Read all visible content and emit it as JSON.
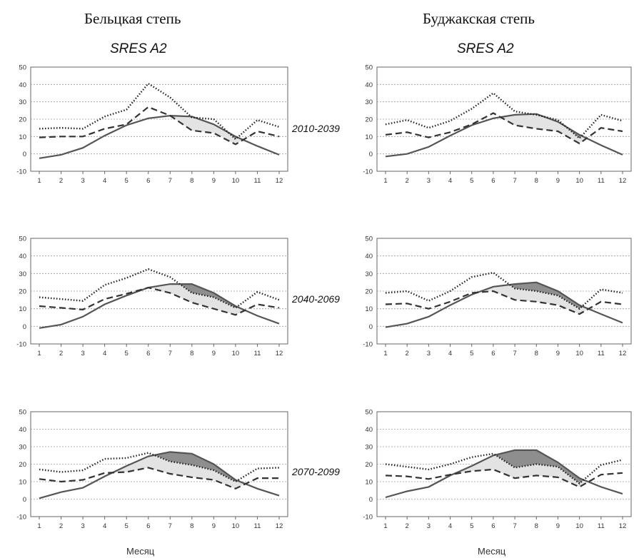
{
  "columns": [
    {
      "title": "Бельцкая степь",
      "scenario": "SRES A2"
    },
    {
      "title": "Буджакская степь",
      "scenario": "SRES A2"
    }
  ],
  "periods": [
    "2010-2039",
    "2040-2069",
    "2070-2099"
  ],
  "xlabel": "Месяц",
  "colors": {
    "solid": "#555555",
    "dashed": "#333333",
    "dotted": "#222222",
    "fill_light": "#e3e3e3",
    "fill_dark": "#8e8e8e",
    "grid": "#9a9a9a"
  },
  "chart_data": [
    {
      "type": "line",
      "column": 0,
      "period": "2010-2039",
      "x": [
        1,
        2,
        3,
        4,
        5,
        6,
        7,
        8,
        9,
        10,
        11,
        12
      ],
      "ylim": [
        -10,
        50
      ],
      "yticks": [
        -10,
        0,
        10,
        20,
        30,
        40,
        50
      ],
      "series": [
        {
          "style": "solid",
          "values": [
            -2.5,
            -0.5,
            3.5,
            10.5,
            16.5,
            20.5,
            22,
            21.5,
            17,
            10,
            4.5,
            -0.5
          ]
        },
        {
          "style": "dashed",
          "values": [
            9.5,
            10,
            10,
            14.5,
            17,
            27,
            22,
            13.5,
            12,
            5.5,
            13,
            10
          ]
        },
        {
          "style": "dotted",
          "values": [
            14.5,
            15,
            14.5,
            21.5,
            25.5,
            40.5,
            32.5,
            21,
            20,
            8.5,
            19.5,
            15.5
          ]
        }
      ]
    },
    {
      "type": "line",
      "column": 0,
      "period": "2040-2069",
      "x": [
        1,
        2,
        3,
        4,
        5,
        6,
        7,
        8,
        9,
        10,
        11,
        12
      ],
      "ylim": [
        -10,
        50
      ],
      "yticks": [
        -10,
        0,
        10,
        20,
        30,
        40,
        50
      ],
      "series": [
        {
          "style": "solid",
          "values": [
            -1,
            1,
            5.5,
            12.5,
            17.5,
            22,
            24,
            24,
            19,
            11.5,
            6,
            1.5
          ]
        },
        {
          "style": "dashed",
          "values": [
            11.5,
            10.5,
            9.5,
            15.5,
            18.5,
            22,
            19,
            13.5,
            10,
            6.5,
            12.5,
            10.5
          ]
        },
        {
          "style": "dotted",
          "values": [
            16.5,
            15.5,
            14.5,
            23.5,
            27.5,
            32.5,
            28,
            19,
            16.5,
            10.5,
            19.5,
            15
          ]
        }
      ]
    },
    {
      "type": "line",
      "column": 0,
      "period": "2070-2099",
      "x": [
        1,
        2,
        3,
        4,
        5,
        6,
        7,
        8,
        9,
        10,
        11,
        12
      ],
      "ylim": [
        -10,
        50
      ],
      "yticks": [
        -10,
        0,
        10,
        20,
        30,
        40,
        50
      ],
      "series": [
        {
          "style": "solid",
          "values": [
            0.5,
            4,
            6.5,
            13,
            19,
            24.5,
            27,
            26,
            20,
            11,
            6,
            2
          ]
        },
        {
          "style": "dashed",
          "values": [
            11.5,
            10,
            11,
            15,
            15.5,
            18,
            14.5,
            12.5,
            11,
            6,
            12,
            12
          ]
        },
        {
          "style": "dotted",
          "values": [
            17,
            15.5,
            16.5,
            23,
            23.5,
            26.5,
            21.5,
            19.5,
            16.5,
            10,
            17.5,
            18
          ]
        }
      ]
    },
    {
      "type": "line",
      "column": 1,
      "period": "2010-2039",
      "x": [
        1,
        2,
        3,
        4,
        5,
        6,
        7,
        8,
        9,
        10,
        11,
        12
      ],
      "ylim": [
        -10,
        50
      ],
      "yticks": [
        -10,
        0,
        10,
        20,
        30,
        40,
        50
      ],
      "series": [
        {
          "style": "solid",
          "values": [
            -1.5,
            0,
            4,
            10.5,
            16.5,
            20.5,
            22.5,
            23,
            18.5,
            11,
            5,
            -0.5
          ]
        },
        {
          "style": "dashed",
          "values": [
            11,
            12.5,
            9.5,
            12.5,
            17,
            23.5,
            16.5,
            14.5,
            13,
            6,
            15,
            13
          ]
        },
        {
          "style": "dotted",
          "values": [
            17,
            19.5,
            15,
            19,
            26,
            35,
            24.5,
            22.5,
            19.5,
            9,
            22.5,
            19
          ]
        }
      ]
    },
    {
      "type": "line",
      "column": 1,
      "period": "2040-2069",
      "x": [
        1,
        2,
        3,
        4,
        5,
        6,
        7,
        8,
        9,
        10,
        11,
        12
      ],
      "ylim": [
        -10,
        50
      ],
      "yticks": [
        -10,
        0,
        10,
        20,
        30,
        40,
        50
      ],
      "series": [
        {
          "style": "solid",
          "values": [
            -0.5,
            1.5,
            5.5,
            12,
            18,
            22.5,
            24,
            25,
            20,
            12,
            7,
            2
          ]
        },
        {
          "style": "dashed",
          "values": [
            12.5,
            13,
            10,
            14,
            19,
            20,
            15,
            14,
            12,
            7,
            14,
            12.5
          ]
        },
        {
          "style": "dotted",
          "values": [
            19,
            20,
            14.5,
            20,
            28,
            30.5,
            21.5,
            20,
            17.5,
            10,
            21,
            19
          ]
        }
      ]
    },
    {
      "type": "line",
      "column": 1,
      "period": "2070-2099",
      "x": [
        1,
        2,
        3,
        4,
        5,
        6,
        7,
        8,
        9,
        10,
        11,
        12
      ],
      "ylim": [
        -10,
        50
      ],
      "yticks": [
        -10,
        0,
        10,
        20,
        30,
        40,
        50
      ],
      "series": [
        {
          "style": "solid",
          "values": [
            1,
            4.5,
            7,
            13.5,
            19,
            25,
            28,
            28,
            21,
            12,
            7,
            3
          ]
        },
        {
          "style": "dashed",
          "values": [
            13.5,
            13,
            11.5,
            14,
            16,
            17,
            12,
            13.5,
            12.5,
            7,
            14,
            15
          ]
        },
        {
          "style": "dotted",
          "values": [
            20,
            18.5,
            17,
            20,
            24,
            26,
            18,
            20,
            18.5,
            9,
            19.5,
            22.5
          ]
        }
      ]
    }
  ]
}
